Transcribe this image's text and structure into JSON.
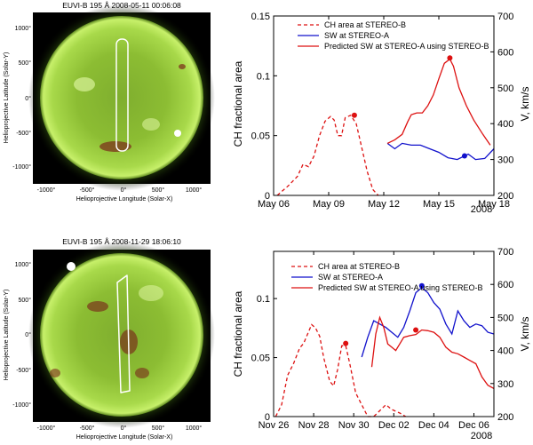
{
  "images": [
    {
      "title": "EUVI-B 195 Å 2008-05-11 00:06:08",
      "xlabel": "Helioprojective Longitude (Solar-X)",
      "ylabel": "Helioprojective Latitude (Solar-Y)",
      "xticks": [
        "-1000°",
        "-500°",
        "0°",
        "500°",
        "1000°"
      ],
      "yticks": [
        "1000°",
        "500°",
        "0°",
        "-500°",
        "-1000°"
      ]
    },
    {
      "title": "EUVI-B 195 Å 2008-11-29 18:06:10",
      "xlabel": "Helioprojective Longitude (Solar-X)",
      "ylabel": "Helioprojective Latitude (Solar-Y)",
      "xticks": [
        "-1000°",
        "-500°",
        "0°",
        "500°",
        "1000°"
      ],
      "yticks": [
        "1000°",
        "500°",
        "0°",
        "-500°",
        "-1000°"
      ]
    }
  ],
  "chart_data": [
    {
      "type": "line",
      "ylabel_left": "CH fractional area",
      "ylabel_right": "V, km/s",
      "year": "2008",
      "x_ticks": [
        "May 06",
        "May 09",
        "May 12",
        "May 15",
        "May 18"
      ],
      "x_tick_days": [
        6,
        9,
        12,
        15,
        18
      ],
      "xlim": [
        6,
        18
      ],
      "ylim_left": [
        0,
        0.15
      ],
      "ylim_right": [
        200,
        700
      ],
      "y_ticks_left": [
        "0",
        "0.05",
        "0.1",
        "0.15"
      ],
      "y_tick_values_left": [
        0,
        0.05,
        0.1,
        0.15
      ],
      "y_ticks_right": [
        "200",
        "300",
        "400",
        "500",
        "600",
        "700"
      ],
      "y_tick_values_right": [
        200,
        300,
        400,
        500,
        600,
        700
      ],
      "legend": [
        {
          "label": "CH area at STEREO-B",
          "color": "#dd1111",
          "style": "dashed"
        },
        {
          "label": "SW at STEREO-A",
          "color": "#1111cc",
          "style": "solid"
        },
        {
          "label": "Predicted SW at STEREO-A using STEREO-B",
          "color": "#dd1111",
          "style": "solid"
        }
      ],
      "series": [
        {
          "name": "CH area at STEREO-B",
          "axis": "left",
          "color": "#dd1111",
          "dashed": true,
          "points": [
            [
              6.2,
              0.0
            ],
            [
              6.8,
              0.008
            ],
            [
              7.3,
              0.016
            ],
            [
              7.6,
              0.026
            ],
            [
              7.9,
              0.024
            ],
            [
              8.2,
              0.033
            ],
            [
              8.5,
              0.05
            ],
            [
              8.8,
              0.062
            ],
            [
              9.1,
              0.066
            ],
            [
              9.3,
              0.063
            ],
            [
              9.5,
              0.05
            ],
            [
              9.7,
              0.05
            ],
            [
              9.9,
              0.065
            ],
            [
              10.2,
              0.067
            ],
            [
              10.5,
              0.06
            ],
            [
              10.8,
              0.04
            ],
            [
              11.1,
              0.02
            ],
            [
              11.4,
              0.005
            ],
            [
              11.7,
              0.0
            ]
          ],
          "marker": [
            10.4,
            0.067
          ]
        },
        {
          "name": "SW at STEREO-A",
          "axis": "right",
          "color": "#1111cc",
          "dashed": false,
          "points": [
            [
              12.2,
              345
            ],
            [
              12.6,
              330
            ],
            [
              13.0,
              345
            ],
            [
              13.5,
              340
            ],
            [
              14.0,
              340
            ],
            [
              14.5,
              330
            ],
            [
              15.0,
              320
            ],
            [
              15.5,
              305
            ],
            [
              16.0,
              300
            ],
            [
              16.6,
              315
            ],
            [
              17.0,
              300
            ],
            [
              17.5,
              303
            ],
            [
              18.0,
              330
            ]
          ],
          "marker": [
            16.4,
            310
          ]
        },
        {
          "name": "Predicted SW at STEREO-A using STEREO-B",
          "axis": "right",
          "color": "#dd1111",
          "dashed": false,
          "points": [
            [
              12.2,
              345
            ],
            [
              12.6,
              355
            ],
            [
              13.0,
              370
            ],
            [
              13.3,
              405
            ],
            [
              13.5,
              425
            ],
            [
              13.8,
              430
            ],
            [
              14.1,
              430
            ],
            [
              14.4,
              450
            ],
            [
              14.7,
              480
            ],
            [
              15.0,
              525
            ],
            [
              15.3,
              568
            ],
            [
              15.6,
              580
            ],
            [
              15.8,
              560
            ],
            [
              16.1,
              500
            ],
            [
              16.5,
              450
            ],
            [
              16.9,
              410
            ],
            [
              17.4,
              370
            ],
            [
              17.8,
              340
            ]
          ],
          "marker": [
            15.6,
            583
          ]
        }
      ]
    },
    {
      "type": "line",
      "ylabel_left": "CH fractional area",
      "ylabel_right": "V, km/s",
      "year": "2008",
      "x_ticks": [
        "Nov 26",
        "Nov 28",
        "Nov 30",
        "Dec 02",
        "Dec 04",
        "Dec 06"
      ],
      "x_tick_days": [
        26,
        28,
        30,
        32,
        34,
        36
      ],
      "xlim": [
        26,
        37
      ],
      "ylim_left": [
        0,
        0.14
      ],
      "ylim_right": [
        200,
        700
      ],
      "y_ticks_left": [
        "0",
        "0.05",
        "0.1"
      ],
      "y_tick_values_left": [
        0,
        0.05,
        0.1
      ],
      "y_ticks_right": [
        "200",
        "300",
        "400",
        "500",
        "600",
        "700"
      ],
      "y_tick_values_right": [
        200,
        300,
        400,
        500,
        600,
        700
      ],
      "legend": [
        {
          "label": "CH area at STEREO-B",
          "color": "#dd1111",
          "style": "dashed"
        },
        {
          "label": "SW at STEREO-A",
          "color": "#1111cc",
          "style": "solid"
        },
        {
          "label": "Predicted SW at STEREO-A using STEREO-B",
          "color": "#dd1111",
          "style": "solid"
        }
      ],
      "series": [
        {
          "name": "CH area at STEREO-B",
          "axis": "left",
          "color": "#dd1111",
          "dashed": true,
          "points": [
            [
              26.1,
              0.0
            ],
            [
              26.4,
              0.01
            ],
            [
              26.7,
              0.035
            ],
            [
              27.0,
              0.045
            ],
            [
              27.3,
              0.058
            ],
            [
              27.5,
              0.062
            ],
            [
              27.7,
              0.07
            ],
            [
              27.9,
              0.078
            ],
            [
              28.1,
              0.075
            ],
            [
              28.3,
              0.068
            ],
            [
              28.5,
              0.05
            ],
            [
              28.8,
              0.03
            ],
            [
              29.0,
              0.026
            ],
            [
              29.2,
              0.04
            ],
            [
              29.4,
              0.06
            ],
            [
              29.6,
              0.06
            ],
            [
              29.8,
              0.045
            ],
            [
              30.1,
              0.02
            ],
            [
              30.4,
              0.01
            ],
            [
              30.7,
              0.0
            ],
            [
              31.0,
              0.0
            ],
            [
              31.3,
              0.005
            ],
            [
              31.6,
              0.01
            ],
            [
              31.9,
              0.006
            ],
            [
              32.3,
              0.003
            ],
            [
              32.6,
              0.0
            ]
          ],
          "marker": [
            29.6,
            0.062
          ]
        },
        {
          "name": "SW at STEREO-A",
          "axis": "right",
          "color": "#1111cc",
          "dashed": false,
          "points": [
            [
              30.4,
              380
            ],
            [
              30.7,
              440
            ],
            [
              31.0,
              490
            ],
            [
              31.3,
              480
            ],
            [
              31.6,
              470
            ],
            [
              31.9,
              455
            ],
            [
              32.2,
              440
            ],
            [
              32.5,
              470
            ],
            [
              32.8,
              520
            ],
            [
              33.1,
              575
            ],
            [
              33.4,
              590
            ],
            [
              33.7,
              575
            ],
            [
              34.0,
              545
            ],
            [
              34.3,
              525
            ],
            [
              34.6,
              480
            ],
            [
              34.9,
              450
            ],
            [
              35.2,
              520
            ],
            [
              35.5,
              490
            ],
            [
              35.8,
              470
            ],
            [
              36.1,
              480
            ],
            [
              36.4,
              475
            ],
            [
              36.7,
              455
            ],
            [
              37.0,
              450
            ]
          ],
          "marker": [
            33.4,
            596
          ]
        },
        {
          "name": "Predicted SW at STEREO-A using STEREO-B",
          "axis": "right",
          "color": "#dd1111",
          "dashed": false,
          "points": [
            [
              30.9,
              350
            ],
            [
              31.1,
              450
            ],
            [
              31.3,
              500
            ],
            [
              31.5,
              470
            ],
            [
              31.7,
              420
            ],
            [
              31.9,
              410
            ],
            [
              32.1,
              400
            ],
            [
              32.3,
              420
            ],
            [
              32.5,
              440
            ],
            [
              32.8,
              445
            ],
            [
              33.1,
              448
            ],
            [
              33.4,
              462
            ],
            [
              33.7,
              460
            ],
            [
              34.0,
              455
            ],
            [
              34.3,
              440
            ],
            [
              34.6,
              410
            ],
            [
              34.9,
              395
            ],
            [
              35.2,
              390
            ],
            [
              35.5,
              380
            ],
            [
              35.8,
              370
            ],
            [
              36.1,
              360
            ],
            [
              36.4,
              320
            ],
            [
              36.7,
              295
            ],
            [
              37.0,
              285
            ]
          ],
          "marker": [
            33.1,
            462
          ]
        }
      ]
    }
  ]
}
